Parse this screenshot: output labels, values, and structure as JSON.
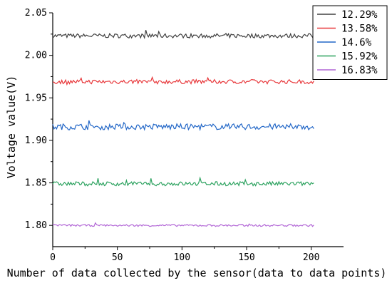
{
  "chart_data": {
    "type": "line",
    "title": "",
    "xlabel": "Number of data collected by the sensor(data to data points)",
    "ylabel": "Voltage value(V)",
    "xlim": [
      0,
      225
    ],
    "ylim": [
      1.775,
      2.05
    ],
    "x_ticks": [
      "0",
      "50",
      "100",
      "150",
      "200"
    ],
    "y_ticks": [
      "1.80",
      "1.85",
      "1.90",
      "1.95",
      "2.00",
      "2.05"
    ],
    "grid": false,
    "legend_position": "top-right",
    "series": [
      {
        "name": "12.29%",
        "color": "#404040",
        "mean": 2.023,
        "spread": 0.0025,
        "x_range": [
          0,
          202
        ]
      },
      {
        "name": "13.58%",
        "color": "#e8383b",
        "mean": 1.969,
        "spread": 0.0025,
        "x_range": [
          0,
          202
        ]
      },
      {
        "name": "14.6%",
        "color": "#2166c7",
        "mean": 1.916,
        "spread": 0.0035,
        "x_range": [
          0,
          202
        ]
      },
      {
        "name": "15.92%",
        "color": "#2ca25f",
        "mean": 1.849,
        "spread": 0.0025,
        "x_range": [
          0,
          202
        ]
      },
      {
        "name": "16.83%",
        "color": "#b266d6",
        "mean": 1.8,
        "spread": 0.0012,
        "x_range": [
          0,
          202
        ]
      }
    ]
  }
}
